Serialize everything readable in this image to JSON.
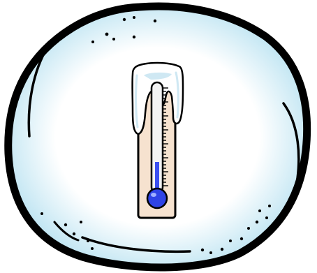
{
  "illustration": {
    "subject": "thermometer-icon",
    "frame": "snowball-icon",
    "colors": {
      "outline": "#000000",
      "snowball_fill": "#ffffff",
      "snowball_edge_tint": "#b9e2f1",
      "snow_cap": "#ffffff",
      "snow_cap_shadow": "#cfe8f3",
      "thermometer_body": "#f6e2cf",
      "tube": "#f3f3f3",
      "mercury": "#3b50f0",
      "bulb": "#2e43e6",
      "bulb_highlight": "#9fb0ff"
    }
  }
}
